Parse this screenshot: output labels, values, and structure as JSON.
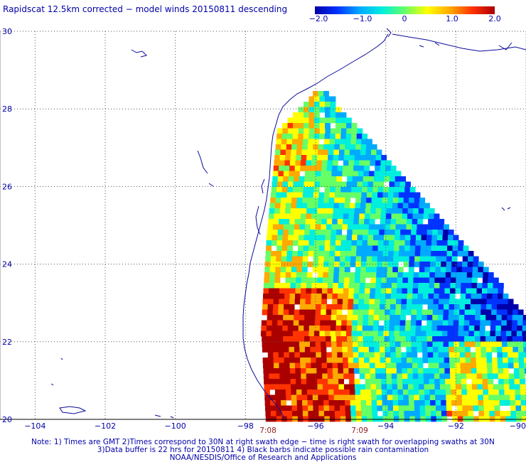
{
  "title": "Rapidscat 12.5km corrected − model winds 20150811 descending",
  "colorbar": {
    "labels": [
      "−2.0",
      "−1.0",
      "0",
      "1.0",
      "2.0"
    ],
    "values": [
      -2.0,
      -1.0,
      0,
      1.0,
      2.0
    ],
    "colors": [
      "#0000aa",
      "#0033ff",
      "#00aaff",
      "#00eedd",
      "#66ff66",
      "#ffff00",
      "#ffaa00",
      "#ff3300",
      "#aa0000"
    ]
  },
  "chart_data": {
    "type": "heatmap",
    "xlim": [
      -105,
      -90
    ],
    "ylim": [
      20,
      30
    ],
    "x_ticks": [
      -104,
      -102,
      -100,
      -98,
      -96,
      -94,
      -92,
      -90
    ],
    "x_tick_labels": [
      "−104",
      "−102",
      "−100",
      "−98",
      "−96",
      "−94",
      "−92",
      "−90"
    ],
    "y_ticks": [
      20,
      22,
      24,
      26,
      28,
      30
    ],
    "y_tick_labels": [
      "20",
      "22",
      "24",
      "26",
      "28",
      "30"
    ],
    "grid": true,
    "value_range": [
      -2.0,
      2.0
    ]
  },
  "times": [
    {
      "label": "7:08",
      "lon": -97.9
    },
    {
      "label": "7:09",
      "lon": -94.8
    }
  ],
  "notes": [
    "Note: 1) Times are GMT 2)Times correspond to 30N at right swath edge − time is right swath for overlapping swaths at 30N",
    "3)Data buffer is 22 hrs for 20150811 4) Black barbs indicate possible rain contamination",
    "NOAA/NESDIS/Office of Research and Applications"
  ]
}
